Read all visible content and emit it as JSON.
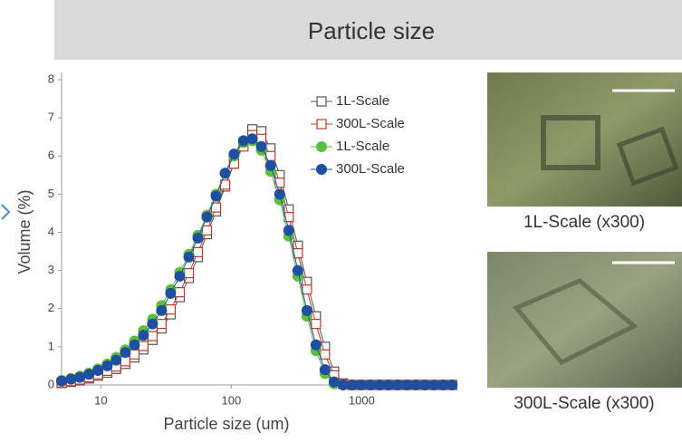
{
  "header": {
    "title": "Particle size"
  },
  "chart_data": {
    "type": "line",
    "x_label": "Particle size (um)",
    "y_label": "Volume (%)",
    "x": [
      5.0,
      5.9,
      6.9,
      8.1,
      9.5,
      11.2,
      13.1,
      15.4,
      18.1,
      21.2,
      24.9,
      29.2,
      34.3,
      40.3,
      47.3,
      55.5,
      65.1,
      76.4,
      89.7,
      105,
      124,
      145,
      170,
      200,
      235,
      276,
      324,
      380,
      446,
      523,
      614,
      721,
      846,
      993,
      1166,
      1369,
      1607,
      1887,
      2215,
      2600,
      3052,
      3583,
      4206,
      4937
    ],
    "xscale": "log",
    "xlim": [
      5,
      5000
    ],
    "xticks": [
      10,
      100,
      1000
    ],
    "ylim": [
      0,
      8
    ],
    "yticks": [
      0,
      1,
      2,
      3,
      4,
      5,
      6,
      7,
      8
    ],
    "series": [
      {
        "name": "1L-Scale",
        "color": "#555555",
        "marker": "square",
        "values": [
          0.05,
          0.08,
          0.12,
          0.17,
          0.24,
          0.32,
          0.42,
          0.55,
          0.72,
          0.93,
          1.18,
          1.48,
          1.85,
          2.3,
          2.8,
          3.35,
          3.95,
          4.55,
          5.2,
          5.8,
          6.35,
          6.7,
          6.65,
          6.2,
          5.5,
          4.6,
          3.65,
          2.7,
          1.8,
          1.0,
          0.35,
          0.04,
          0,
          0,
          0,
          0,
          0,
          0,
          0,
          0,
          0,
          0,
          0,
          0
        ]
      },
      {
        "name": "300L-Scale",
        "color": "#c0392b",
        "marker": "square",
        "values": [
          0.06,
          0.1,
          0.14,
          0.2,
          0.28,
          0.37,
          0.48,
          0.62,
          0.8,
          1.02,
          1.28,
          1.6,
          1.98,
          2.43,
          2.93,
          3.48,
          4.05,
          4.65,
          5.25,
          5.8,
          6.25,
          6.55,
          6.45,
          6.0,
          5.3,
          4.4,
          3.45,
          2.5,
          1.6,
          0.8,
          0.25,
          0.02,
          0,
          0,
          0,
          0,
          0,
          0,
          0,
          0,
          0,
          0,
          0,
          0
        ]
      },
      {
        "name": "1L-Scale",
        "color": "#5cbf3a",
        "marker": "circle",
        "values": [
          0.12,
          0.17,
          0.23,
          0.31,
          0.42,
          0.55,
          0.72,
          0.92,
          1.15,
          1.42,
          1.72,
          2.08,
          2.5,
          2.95,
          3.42,
          3.92,
          4.45,
          5.0,
          5.55,
          6.0,
          6.35,
          6.4,
          6.15,
          5.6,
          4.85,
          3.9,
          2.85,
          1.8,
          0.9,
          0.3,
          0.03,
          0,
          0,
          0,
          0,
          0,
          0,
          0,
          0,
          0,
          0,
          0,
          0,
          0
        ]
      },
      {
        "name": "300L-Scale",
        "color": "#1f4fa0",
        "marker": "circle",
        "values": [
          0.1,
          0.15,
          0.2,
          0.28,
          0.38,
          0.5,
          0.65,
          0.85,
          1.05,
          1.3,
          1.6,
          1.95,
          2.4,
          2.85,
          3.35,
          3.85,
          4.4,
          4.95,
          5.55,
          6.05,
          6.4,
          6.45,
          6.25,
          5.75,
          5.0,
          4.05,
          3.0,
          1.95,
          1.05,
          0.4,
          0.08,
          0,
          0,
          0,
          0,
          0,
          0,
          0,
          0,
          0,
          0,
          0,
          0,
          0
        ]
      }
    ]
  },
  "images": [
    {
      "caption": "1L-Scale (x300)"
    },
    {
      "caption": "300L-Scale (x300)"
    }
  ]
}
